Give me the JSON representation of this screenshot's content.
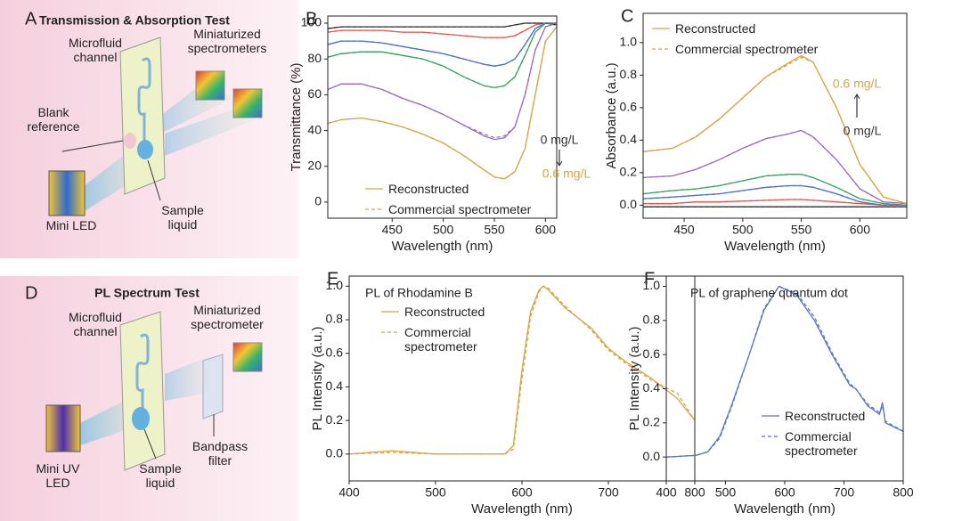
{
  "panels": [
    {
      "label": "A",
      "title": "Transmission & Absorption Test",
      "labels": [
        "Microfluid channel",
        "Miniaturized spectrometers",
        "Blank reference",
        "Mini LED",
        "Sample liquid"
      ]
    },
    {
      "label": "D",
      "title": "PL Spectrum Test",
      "labels": [
        "Microfluid channel",
        "Miniaturized spectrometer",
        "Bandpass filter",
        "Mini UV LED",
        "Sample liquid"
      ]
    }
  ],
  "chart_data": [
    {
      "type": "line",
      "panel_label": "B",
      "xlabel": "Wavelength (nm)",
      "ylabel": "Transmittance (%)",
      "xlim": [
        387,
        611
      ],
      "ylim": [
        -9,
        104
      ],
      "xticks": [
        450,
        500,
        550,
        600
      ],
      "yticks": [
        0,
        20,
        40,
        60,
        80,
        100
      ],
      "x": [
        387,
        400,
        420,
        440,
        460,
        480,
        500,
        520,
        540,
        550,
        560,
        570,
        580,
        590,
        600,
        611
      ],
      "series": [
        {
          "color": "#333333",
          "style": "solid",
          "values": [
            97,
            98,
            98,
            98,
            98,
            98,
            98,
            98,
            98,
            98,
            98,
            99,
            100,
            100,
            100,
            99
          ]
        },
        {
          "color": "#e8574f",
          "style": "solid",
          "values": [
            95,
            96,
            96,
            96,
            95,
            95,
            94,
            93,
            92,
            92,
            92,
            93,
            96,
            99,
            100,
            100
          ]
        },
        {
          "color": "#4a72c9",
          "style": "solid",
          "values": [
            88,
            90,
            90,
            89,
            87,
            85,
            83,
            80,
            77,
            76,
            77,
            80,
            88,
            97,
            100,
            100
          ]
        },
        {
          "color": "#3aa361",
          "style": "solid",
          "values": [
            81,
            83,
            84,
            84,
            82,
            80,
            76,
            70,
            65,
            64,
            65,
            70,
            82,
            95,
            100,
            100
          ]
        },
        {
          "color": "#9b6cc8",
          "style": "solid",
          "values": [
            63,
            66,
            66,
            63,
            58,
            54,
            49,
            43,
            37,
            35,
            36,
            42,
            60,
            85,
            98,
            100
          ]
        },
        {
          "color": "#d9a441",
          "style": "solid",
          "values": [
            44,
            46,
            47,
            45,
            42,
            38,
            33,
            26,
            18,
            14,
            13,
            17,
            30,
            60,
            90,
            98
          ]
        },
        {
          "color": "#333333",
          "style": "dashed",
          "values": [
            97,
            98,
            98,
            98,
            98,
            98,
            98,
            98,
            98,
            98,
            98,
            99,
            100,
            100,
            100,
            99
          ]
        },
        {
          "color": "#e8574f",
          "style": "dashed",
          "values": [
            95,
            96,
            96,
            96,
            95,
            95,
            94,
            93,
            92,
            92,
            92,
            93,
            96,
            99,
            100,
            100
          ]
        },
        {
          "color": "#4a72c9",
          "style": "dashed",
          "values": [
            88,
            90,
            90,
            89,
            87,
            85,
            83,
            80,
            77,
            76,
            77,
            80,
            88,
            97,
            100,
            100
          ]
        },
        {
          "color": "#3aa361",
          "style": "dashed",
          "values": [
            81,
            83,
            84,
            84,
            82,
            80,
            76,
            70,
            65,
            64,
            65,
            70,
            82,
            95,
            100,
            100
          ]
        },
        {
          "color": "#9b6cc8",
          "style": "dashed",
          "values": [
            63,
            66,
            66,
            63,
            58,
            54,
            49,
            43,
            38,
            36,
            37,
            42,
            60,
            85,
            98,
            100
          ]
        },
        {
          "color": "#d9a441",
          "style": "dashed",
          "values": [
            44,
            46,
            47,
            45,
            42,
            38,
            33,
            26,
            18,
            14,
            13,
            17,
            30,
            60,
            90,
            98
          ]
        }
      ],
      "legend": [
        {
          "name": "Reconstructed",
          "style": "solid",
          "color": "#d9a441"
        },
        {
          "name": "Commercial spectrometer",
          "style": "dashed",
          "color": "#d9a441"
        }
      ],
      "annotations": [
        {
          "text": "0 mg/L",
          "color": "#333333"
        },
        {
          "text": "0.6 mg/L",
          "color": "#d9a441"
        }
      ]
    },
    {
      "type": "line",
      "panel_label": "C",
      "xlabel": "Wavelength (nm)",
      "ylabel": "Absorbance (a.u.)",
      "xlim": [
        415,
        640
      ],
      "ylim": [
        -0.08,
        1.18
      ],
      "xticks": [
        450,
        500,
        550,
        600
      ],
      "yticks": [
        {
          "value": 0,
          "label": "0.0"
        },
        0.2,
        0.4,
        0.6,
        0.8,
        {
          "value": 1,
          "label": "1.0"
        }
      ],
      "x": [
        415,
        440,
        460,
        480,
        500,
        520,
        540,
        550,
        560,
        580,
        600,
        620,
        640
      ],
      "series": [
        {
          "color": "#333333",
          "style": "solid",
          "values": [
            -0.01,
            -0.01,
            -0.01,
            -0.01,
            -0.01,
            -0.01,
            -0.01,
            -0.01,
            -0.01,
            -0.01,
            -0.01,
            -0.01,
            -0.01
          ]
        },
        {
          "color": "#e8574f",
          "style": "solid",
          "values": [
            0.01,
            0.01,
            0.02,
            0.02,
            0.025,
            0.03,
            0.035,
            0.035,
            0.03,
            0.02,
            0.01,
            0,
            0
          ]
        },
        {
          "color": "#4a72c9",
          "style": "solid",
          "values": [
            0.04,
            0.05,
            0.06,
            0.07,
            0.09,
            0.11,
            0.12,
            0.12,
            0.11,
            0.07,
            0.02,
            0,
            0
          ]
        },
        {
          "color": "#3aa361",
          "style": "solid",
          "values": [
            0.07,
            0.09,
            0.1,
            0.12,
            0.15,
            0.18,
            0.19,
            0.19,
            0.17,
            0.11,
            0.04,
            0.01,
            0
          ]
        },
        {
          "color": "#9b6cc8",
          "style": "solid",
          "values": [
            0.17,
            0.18,
            0.22,
            0.28,
            0.35,
            0.41,
            0.44,
            0.46,
            0.42,
            0.28,
            0.1,
            0.02,
            0.01
          ]
        },
        {
          "color": "#d9a441",
          "style": "solid",
          "values": [
            0.33,
            0.35,
            0.42,
            0.53,
            0.66,
            0.79,
            0.88,
            0.92,
            0.88,
            0.6,
            0.25,
            0.05,
            0.01
          ]
        },
        {
          "color": "#333333",
          "style": "dashed",
          "values": [
            -0.01,
            -0.01,
            -0.01,
            -0.01,
            -0.01,
            -0.01,
            -0.01,
            -0.01,
            -0.01,
            -0.01,
            -0.01,
            -0.01,
            -0.01
          ]
        },
        {
          "color": "#e8574f",
          "style": "dashed",
          "values": [
            0.01,
            0.01,
            0.02,
            0.02,
            0.025,
            0.03,
            0.035,
            0.035,
            0.03,
            0.02,
            0.01,
            0,
            0
          ]
        },
        {
          "color": "#4a72c9",
          "style": "dashed",
          "values": [
            0.04,
            0.05,
            0.06,
            0.07,
            0.09,
            0.11,
            0.12,
            0.12,
            0.11,
            0.07,
            0.02,
            0,
            0
          ]
        },
        {
          "color": "#3aa361",
          "style": "dashed",
          "values": [
            0.07,
            0.09,
            0.1,
            0.12,
            0.15,
            0.18,
            0.19,
            0.19,
            0.17,
            0.11,
            0.04,
            0.01,
            0
          ]
        },
        {
          "color": "#9b6cc8",
          "style": "dashed",
          "values": [
            0.17,
            0.18,
            0.22,
            0.28,
            0.35,
            0.41,
            0.44,
            0.46,
            0.42,
            0.28,
            0.1,
            0.02,
            0.01
          ]
        },
        {
          "color": "#d9a441",
          "style": "dashed",
          "values": [
            0.33,
            0.35,
            0.42,
            0.53,
            0.66,
            0.79,
            0.87,
            0.91,
            0.88,
            0.6,
            0.25,
            0.05,
            0.01
          ]
        }
      ],
      "legend": [
        {
          "name": "Reconstructed",
          "style": "solid",
          "color": "#d9a441"
        },
        {
          "name": "Commercial spectrometer",
          "style": "dashed",
          "color": "#d9a441"
        }
      ],
      "annotations": [
        {
          "text": "0.6 mg/L",
          "color": "#d9a441"
        },
        {
          "text": "0 mg/L",
          "color": "#333333"
        }
      ]
    },
    {
      "type": "line",
      "panel_label": "E",
      "title": "PL of Rhodamine B",
      "xlabel": "Wavelength (nm)",
      "ylabel": "PL Intensity (a.u.)",
      "xlim": [
        400,
        800
      ],
      "ylim": [
        -0.16,
        1.06
      ],
      "xticks": [
        400,
        500,
        600,
        700,
        800
      ],
      "yticks": [
        {
          "value": 0,
          "label": "0.0"
        },
        0.2,
        0.4,
        0.6,
        0.8,
        {
          "value": 1,
          "label": "1.0"
        }
      ],
      "x": [
        400,
        450,
        500,
        550,
        580,
        590,
        600,
        610,
        620,
        625,
        630,
        650,
        680,
        700,
        720,
        750,
        780,
        800
      ],
      "series": [
        {
          "name": "Reconstructed",
          "color": "#d9a441",
          "style": "solid",
          "values": [
            0,
            0.02,
            0,
            0,
            0,
            0.05,
            0.5,
            0.85,
            0.98,
            1.0,
            0.98,
            0.87,
            0.75,
            0.63,
            0.55,
            0.45,
            0.33,
            0.2
          ]
        },
        {
          "name": "Commercial spectrometer",
          "color": "#d9a441",
          "style": "dashed",
          "values": [
            0,
            0.01,
            0,
            0,
            0,
            0.03,
            0.45,
            0.82,
            0.97,
            1.0,
            0.99,
            0.88,
            0.74,
            0.62,
            0.54,
            0.44,
            0.36,
            0.2
          ]
        }
      ]
    },
    {
      "type": "line",
      "panel_label": "F",
      "title": "PL of graphene quantum dot",
      "xlabel": "Wavelength (nm)",
      "ylabel": "PL Intensity (a.u.)",
      "xlim": [
        400,
        800
      ],
      "ylim": [
        -0.14,
        1.06
      ],
      "xticks": [
        400,
        500,
        600,
        700,
        800
      ],
      "yticks": [
        {
          "value": 0,
          "label": "0.0"
        },
        0.2,
        0.4,
        0.6,
        0.8,
        {
          "value": 1,
          "label": "1.0"
        }
      ],
      "x": [
        400,
        450,
        470,
        490,
        510,
        540,
        565,
        590,
        620,
        650,
        680,
        710,
        720,
        740,
        760,
        765,
        770,
        800
      ],
      "series": [
        {
          "name": "Reconstructed",
          "color": "#5b74c9",
          "style": "solid",
          "values": [
            0,
            0.01,
            0.03,
            0.12,
            0.3,
            0.6,
            0.86,
            1.0,
            0.95,
            0.8,
            0.6,
            0.42,
            0.4,
            0.3,
            0.25,
            0.32,
            0.2,
            0.15
          ]
        },
        {
          "name": "Commercial spectrometer",
          "color": "#5b74c9",
          "style": "dashed",
          "values": [
            0,
            0.01,
            0.03,
            0.11,
            0.29,
            0.6,
            0.87,
            1.0,
            0.96,
            0.82,
            0.61,
            0.43,
            0.4,
            0.31,
            0.26,
            0.3,
            0.21,
            0.15
          ]
        }
      ]
    }
  ]
}
